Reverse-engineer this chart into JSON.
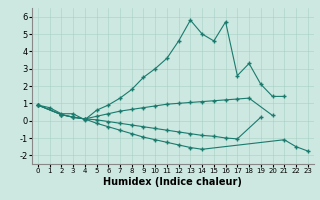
{
  "title": "",
  "xlabel": "Humidex (Indice chaleur)",
  "background_color": "#cce8e0",
  "line_color": "#1a7a6e",
  "xlim": [
    -0.5,
    23.5
  ],
  "ylim": [
    -2.5,
    6.5
  ],
  "xticks": [
    0,
    1,
    2,
    3,
    4,
    5,
    6,
    7,
    8,
    9,
    10,
    11,
    12,
    13,
    14,
    15,
    16,
    17,
    18,
    19,
    20,
    21,
    22,
    23
  ],
  "yticks": [
    -2,
    -1,
    0,
    1,
    2,
    3,
    4,
    5,
    6
  ],
  "series": [
    {
      "x": [
        0,
        1,
        2,
        3,
        4,
        5,
        6,
        7,
        8,
        9,
        10,
        11,
        12,
        13,
        14,
        15,
        16,
        17,
        18,
        19,
        20,
        21
      ],
      "y": [
        0.9,
        0.75,
        0.4,
        0.4,
        0.05,
        0.6,
        0.9,
        1.3,
        1.8,
        2.5,
        3.0,
        3.6,
        4.6,
        5.8,
        5.0,
        4.6,
        5.7,
        2.6,
        3.3,
        2.1,
        1.4,
        1.4
      ]
    },
    {
      "x": [
        0,
        2,
        3,
        4,
        5,
        6,
        7,
        8,
        9,
        10,
        11,
        12,
        13,
        14,
        15,
        16,
        17,
        18,
        20
      ],
      "y": [
        0.9,
        0.35,
        0.2,
        0.1,
        0.25,
        0.4,
        0.55,
        0.65,
        0.75,
        0.85,
        0.95,
        1.0,
        1.05,
        1.1,
        1.15,
        1.2,
        1.25,
        1.3,
        0.3
      ]
    },
    {
      "x": [
        0,
        2,
        3,
        4,
        5,
        6,
        7,
        8,
        9,
        10,
        11,
        12,
        13,
        14,
        15,
        16,
        17,
        19
      ],
      "y": [
        0.9,
        0.35,
        0.2,
        0.1,
        0.05,
        -0.05,
        -0.15,
        -0.25,
        -0.35,
        -0.45,
        -0.55,
        -0.65,
        -0.75,
        -0.85,
        -0.9,
        -1.0,
        -1.05,
        0.2
      ]
    },
    {
      "x": [
        0,
        2,
        3,
        4,
        5,
        6,
        7,
        8,
        9,
        10,
        11,
        12,
        13,
        14,
        21,
        22,
        23
      ],
      "y": [
        0.9,
        0.35,
        0.2,
        0.1,
        -0.15,
        -0.35,
        -0.55,
        -0.75,
        -0.95,
        -1.1,
        -1.25,
        -1.4,
        -1.55,
        -1.65,
        -1.1,
        -1.5,
        -1.75
      ]
    }
  ]
}
